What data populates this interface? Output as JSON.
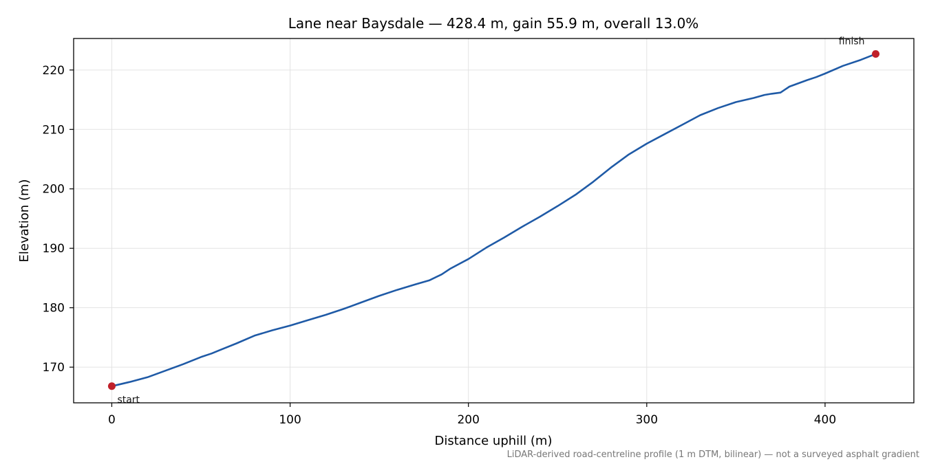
{
  "chart_data": {
    "type": "line",
    "title": "Lane near Baysdale — 428.4 m, gain 55.9 m, overall 13.0%",
    "xlabel": "Distance uphill (m)",
    "ylabel": "Elevation (m)",
    "xlim": [
      -21.4,
      449.8
    ],
    "ylim": [
      164.0,
      225.3
    ],
    "xticks": [
      0,
      100,
      200,
      300,
      400
    ],
    "yticks": [
      170,
      180,
      190,
      200,
      210,
      220
    ],
    "grid": true,
    "series": [
      {
        "color": "#1f5aa6",
        "x": [
          0,
          10,
          20,
          30,
          40,
          50,
          56,
          60,
          70,
          80,
          90,
          100,
          110,
          120,
          130,
          140,
          150,
          160,
          170,
          178,
          185,
          190,
          200,
          210,
          220,
          230,
          240,
          250,
          260,
          270,
          280,
          290,
          300,
          310,
          320,
          330,
          340,
          350,
          360,
          366,
          370,
          375,
          380,
          390,
          395,
          400,
          410,
          420,
          428.4
        ],
        "y": [
          166.8,
          167.5,
          168.3,
          169.4,
          170.5,
          171.7,
          172.3,
          172.8,
          174.0,
          175.3,
          176.2,
          177.0,
          177.9,
          178.8,
          179.8,
          180.9,
          182.0,
          183.0,
          183.9,
          184.6,
          185.6,
          186.6,
          188.2,
          190.1,
          191.8,
          193.6,
          195.3,
          197.1,
          199.0,
          201.2,
          203.6,
          205.8,
          207.6,
          209.2,
          210.8,
          212.4,
          213.6,
          214.6,
          215.3,
          215.8,
          216.0,
          216.2,
          217.2,
          218.3,
          218.8,
          219.4,
          220.7,
          221.7,
          222.7
        ]
      }
    ],
    "markers": [
      {
        "label": "start",
        "x": 0,
        "y": 166.8,
        "color": "#c0202a"
      },
      {
        "label": "finish",
        "x": 428.4,
        "y": 222.7,
        "color": "#c0202a"
      }
    ],
    "footnote": "LiDAR-derived road-centreline profile (1 m DTM, bilinear) — not a surveyed asphalt gradient"
  }
}
